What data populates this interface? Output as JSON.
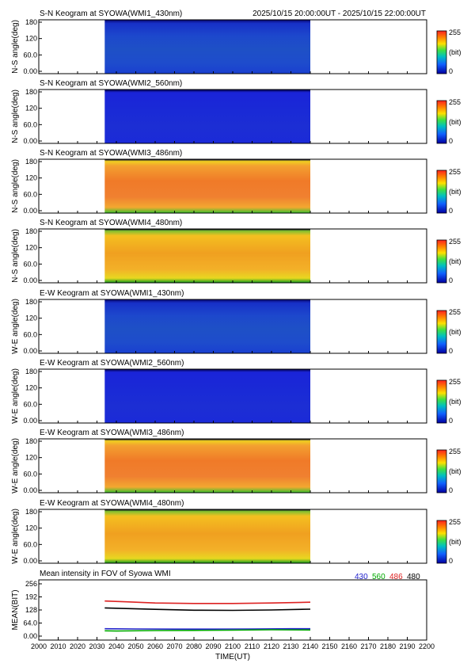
{
  "header": {
    "time_range": "2025/10/15 20:00:00UT - 2025/10/15 22:00:00UT"
  },
  "colorbar": {
    "max_label": "255",
    "unit_label": "(bit)",
    "min_label": "0"
  },
  "keograms": [
    {
      "title": "S-N Keogram at SYOWA(WMI1_430nm)",
      "ylabel": "N-S angle(deg)",
      "profile": "blue_dark"
    },
    {
      "title": "S-N Keogram at SYOWA(WMI2_560nm)",
      "ylabel": "N-S angle(deg)",
      "profile": "blue_deep"
    },
    {
      "title": "S-N Keogram at SYOWA(WMI3_486nm)",
      "ylabel": "N-S angle(deg)",
      "profile": "orange"
    },
    {
      "title": "S-N Keogram at SYOWA(WMI4_480nm)",
      "ylabel": "N-S angle(deg)",
      "profile": "yellow"
    },
    {
      "title": "E-W Keogram at SYOWA(WMI1_430nm)",
      "ylabel": "W-E angle(deg)",
      "profile": "blue_dark"
    },
    {
      "title": "E-W Keogram at SYOWA(WMI2_560nm)",
      "ylabel": "W-E angle(deg)",
      "profile": "blue_deep"
    },
    {
      "title": "E-W Keogram at SYOWA(WMI3_486nm)",
      "ylabel": "W-E angle(deg)",
      "profile": "orange"
    },
    {
      "title": "E-W Keogram at SYOWA(WMI4_480nm)",
      "ylabel": "W-E angle(deg)",
      "profile": "yellow"
    }
  ],
  "keogram_yticks": [
    "180",
    "120",
    "60.0",
    "0.00"
  ],
  "keogram_ylim": [
    0,
    180
  ],
  "data_time_range": [
    "2034",
    "2140"
  ],
  "chart_data": {
    "type": "line",
    "title": "Mean intensity in FOV of Syowa WMI",
    "xlabel": "TIME(UT)",
    "ylabel": "MEAN(BIT)",
    "xlim": [
      2000,
      2200
    ],
    "ylim": [
      0,
      256
    ],
    "xticks": [
      "2000",
      "2010",
      "2020",
      "2030",
      "2040",
      "2050",
      "2060",
      "2070",
      "2080",
      "2090",
      "2100",
      "2110",
      "2120",
      "2130",
      "2140",
      "2150",
      "2160",
      "2170",
      "2180",
      "2190",
      "2200"
    ],
    "yticks": [
      "256",
      "192",
      "128",
      "64.0",
      "0.00"
    ],
    "legend": [
      {
        "label": "430",
        "color": "#2222cc"
      },
      {
        "label": "560",
        "color": "#00aa00"
      },
      {
        "label": "486",
        "color": "#dd2222"
      },
      {
        "label": "480",
        "color": "#000000"
      }
    ],
    "series": [
      {
        "name": "430",
        "color": "#2222cc",
        "x": [
          2034,
          2050,
          2070,
          2090,
          2110,
          2130,
          2140
        ],
        "values": [
          36,
          35,
          34,
          34,
          35,
          36,
          36
        ]
      },
      {
        "name": "560",
        "color": "#00aa00",
        "x": [
          2034,
          2040,
          2060,
          2080,
          2100,
          2120,
          2140
        ],
        "values": [
          26,
          25,
          27,
          28,
          29,
          31,
          30
        ]
      },
      {
        "name": "486",
        "color": "#dd2222",
        "x": [
          2034,
          2045,
          2060,
          2080,
          2100,
          2120,
          2140
        ],
        "values": [
          172,
          168,
          162,
          160,
          160,
          162,
          166
        ]
      },
      {
        "name": "480",
        "color": "#000000",
        "x": [
          2034,
          2045,
          2060,
          2080,
          2100,
          2120,
          2140
        ],
        "values": [
          138,
          135,
          131,
          127,
          126,
          128,
          132
        ]
      }
    ]
  }
}
